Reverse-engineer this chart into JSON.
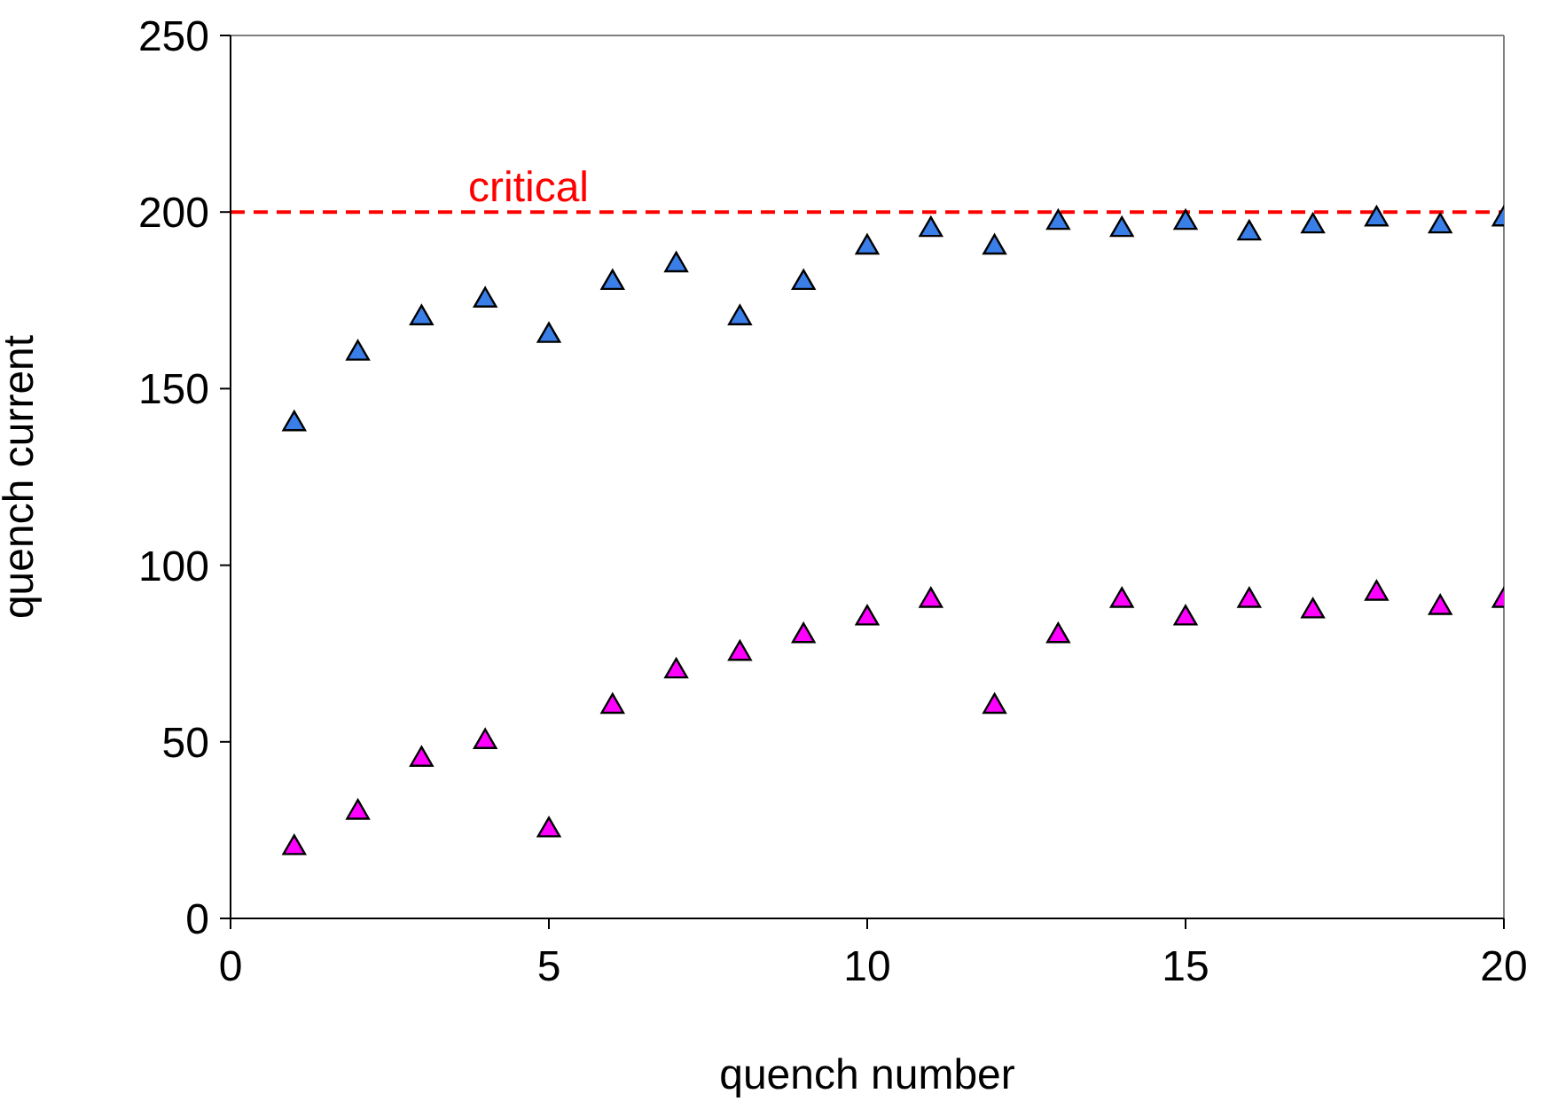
{
  "chart_data": {
    "type": "scatter",
    "xlabel": "quench number",
    "ylabel": "quench current",
    "x": [
      1,
      2,
      3,
      4,
      5,
      6,
      7,
      8,
      9,
      10,
      11,
      12,
      13,
      14,
      15,
      16,
      17,
      18,
      19,
      20
    ],
    "series": [
      {
        "color": "#3a7ee8",
        "values": [
          140,
          160,
          170,
          175,
          165,
          180,
          185,
          170,
          180,
          190,
          195,
          190,
          197,
          195,
          197,
          194,
          196,
          198,
          196,
          198
        ]
      },
      {
        "color": "#ff00ff",
        "values": [
          20,
          30,
          45,
          50,
          25,
          60,
          70,
          75,
          80,
          85,
          90,
          60,
          80,
          90,
          85,
          90,
          87,
          92,
          88,
          90
        ]
      }
    ],
    "xlim": [
      0,
      20
    ],
    "xticks": [
      0,
      5,
      10,
      15,
      20
    ],
    "ylim": [
      0,
      250
    ],
    "yticks": [
      0,
      50,
      100,
      150,
      200,
      250
    ],
    "ref_lines": [
      {
        "axis": "y",
        "value": 200,
        "label": "critical",
        "color": "#ff0000",
        "line_style": "dashed"
      }
    ],
    "marker": "triangle",
    "grid": false,
    "legend": false
  }
}
